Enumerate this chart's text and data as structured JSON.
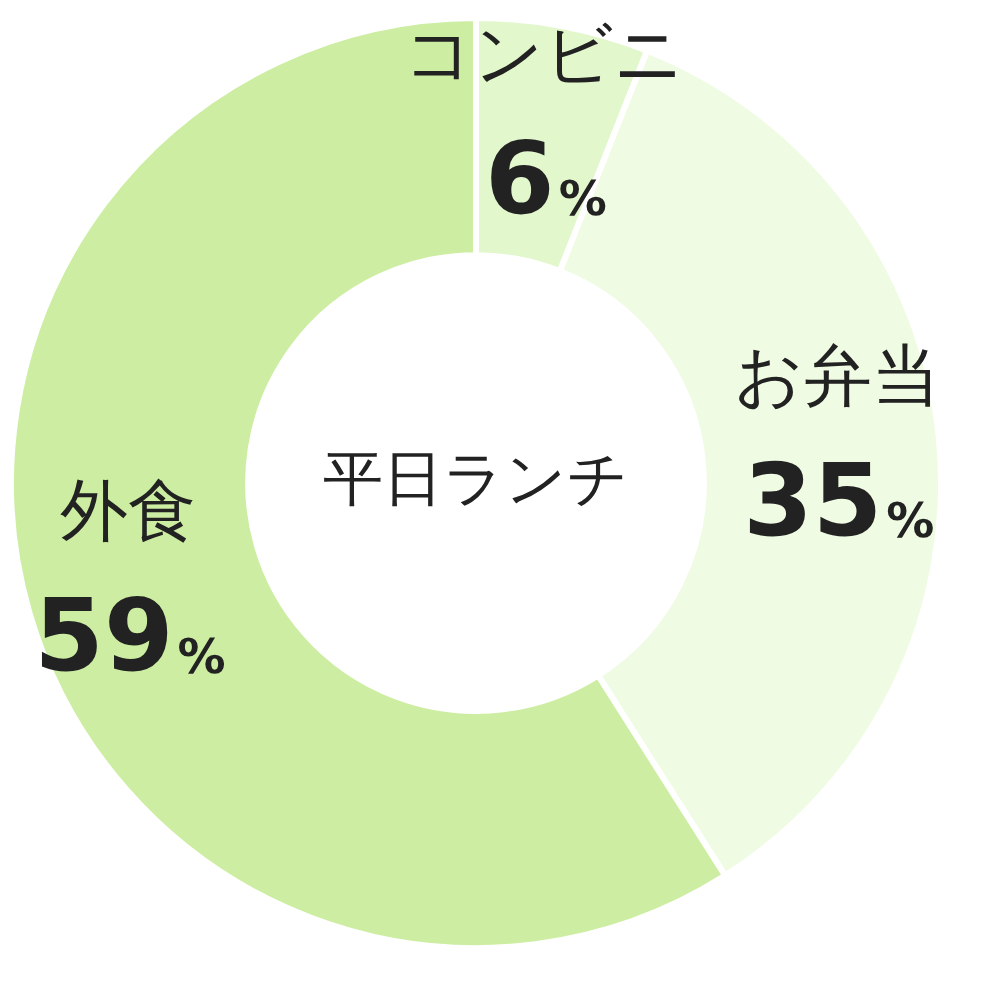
{
  "chart_data": {
    "type": "donut",
    "title": "平日ランチ",
    "categories": [
      "コンビニ",
      "お弁当",
      "外食"
    ],
    "values": [
      6,
      35,
      59
    ],
    "value_labels": [
      "6%",
      "35%",
      "59%"
    ],
    "colors": [
      "#e3f7cc",
      "#effbe2",
      "#cdeea2"
    ],
    "legend": false
  }
}
